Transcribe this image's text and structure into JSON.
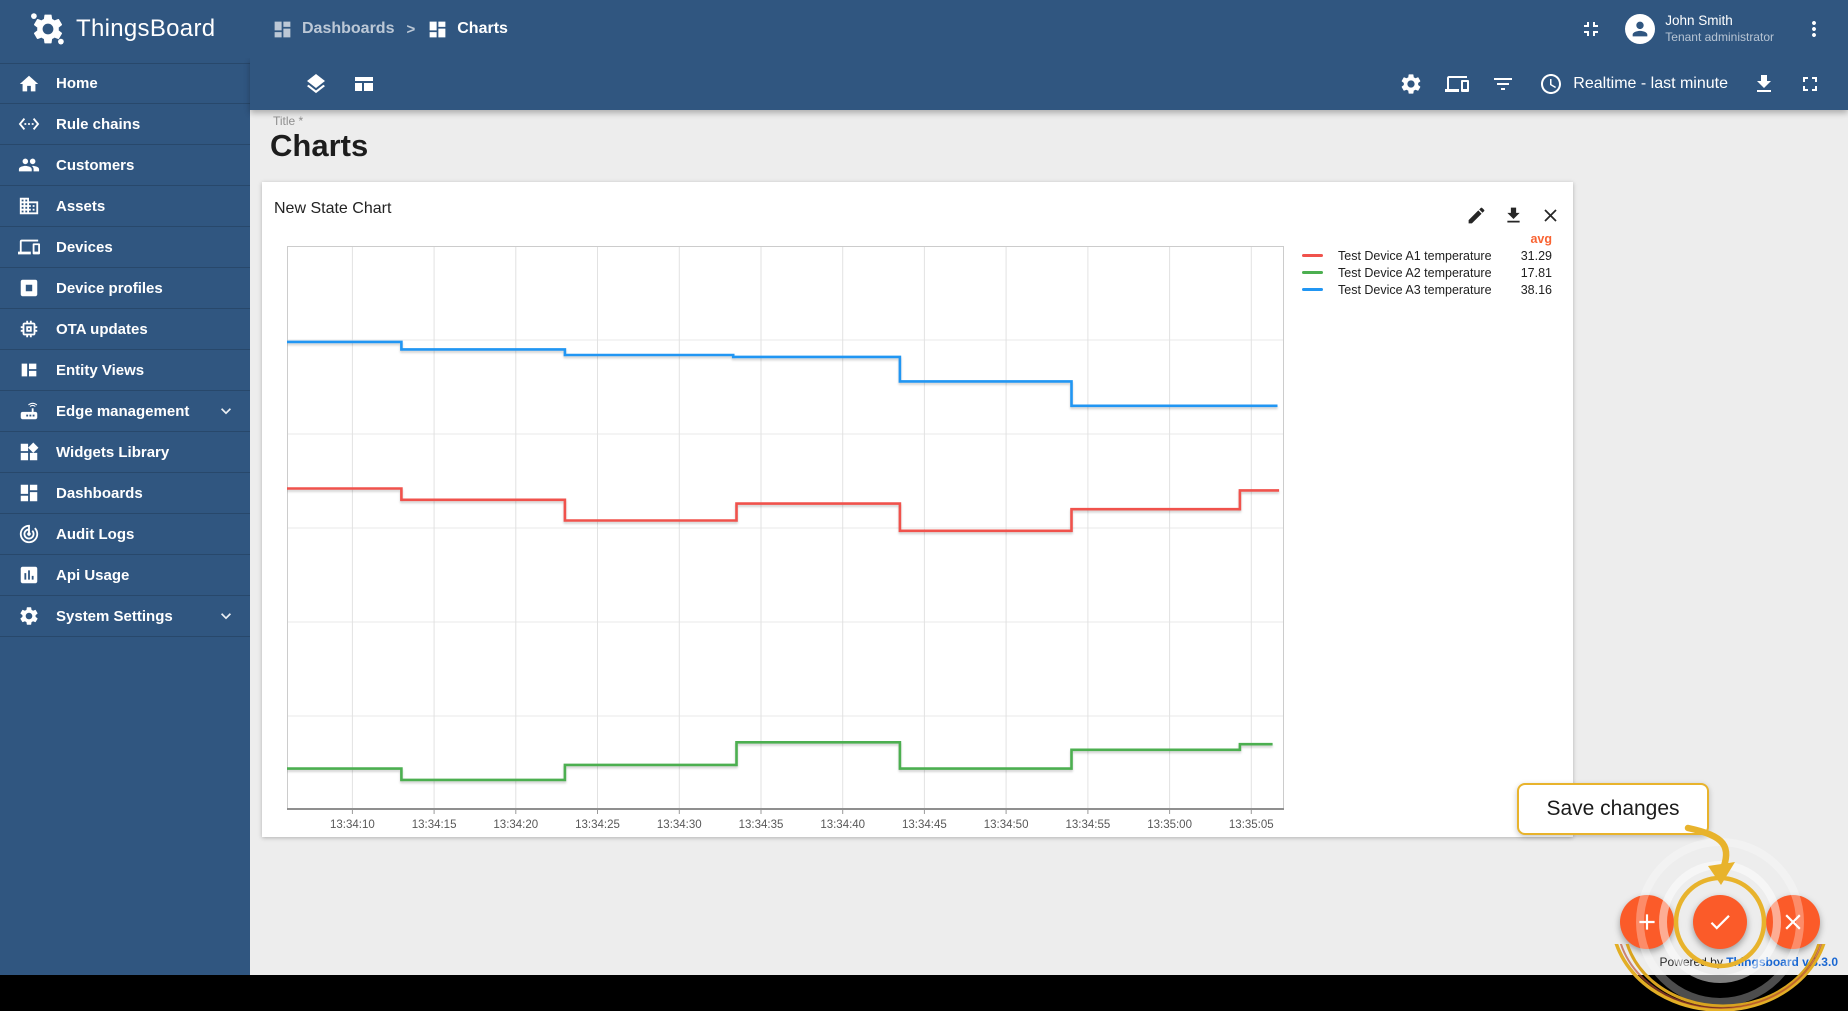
{
  "header": {
    "app_name": "ThingsBoard",
    "breadcrumb": [
      {
        "icon": "dashboards-icon",
        "label": "Dashboards"
      },
      {
        "icon": "dashboards-icon",
        "label": "Charts"
      }
    ],
    "separator": ">",
    "user": {
      "name": "John Smith",
      "role": "Tenant administrator"
    }
  },
  "sidebar": {
    "items": [
      {
        "label": "Home",
        "icon": "home-icon"
      },
      {
        "label": "Rule chains",
        "icon": "rule-chains-icon"
      },
      {
        "label": "Customers",
        "icon": "customers-icon"
      },
      {
        "label": "Assets",
        "icon": "assets-icon"
      },
      {
        "label": "Devices",
        "icon": "devices-icon"
      },
      {
        "label": "Device profiles",
        "icon": "device-profiles-icon"
      },
      {
        "label": "OTA updates",
        "icon": "ota-updates-icon"
      },
      {
        "label": "Entity Views",
        "icon": "entity-views-icon"
      },
      {
        "label": "Edge management",
        "icon": "edge-management-icon",
        "expandable": true
      },
      {
        "label": "Widgets Library",
        "icon": "widgets-library-icon"
      },
      {
        "label": "Dashboards",
        "icon": "dashboards-icon"
      },
      {
        "label": "Audit Logs",
        "icon": "audit-logs-icon"
      },
      {
        "label": "Api Usage",
        "icon": "api-usage-icon"
      },
      {
        "label": "System Settings",
        "icon": "system-settings-icon",
        "expandable": true
      }
    ]
  },
  "toolbar": {
    "left_icons": [
      "layers-icon",
      "manage-layouts-icon"
    ],
    "right_icons": [
      "settings-icon",
      "entity-aliases-icon",
      "filter-icon"
    ],
    "timewindow": {
      "icon": "clock-icon",
      "label": "Realtime - last minute"
    },
    "trailing_icons": [
      "download-icon",
      "fullscreen-icon"
    ]
  },
  "page": {
    "title_label": "Title *",
    "title": "Charts"
  },
  "widget": {
    "title": "New State Chart",
    "actions": [
      "edit-icon",
      "download-icon",
      "close-icon"
    ],
    "legend_header": "avg"
  },
  "chart_data": {
    "type": "line",
    "subtype": "step-after",
    "title": "New State Chart",
    "xlim": [
      6,
      67
    ],
    "ylim": [
      15,
      45
    ],
    "grid": true,
    "legend_position": "right",
    "x_ticks": [
      {
        "s": 10,
        "label": "13:34:10"
      },
      {
        "s": 15,
        "label": "13:34:15"
      },
      {
        "s": 20,
        "label": "13:34:20"
      },
      {
        "s": 25,
        "label": "13:34:25"
      },
      {
        "s": 30,
        "label": "13:34:30"
      },
      {
        "s": 35,
        "label": "13:34:35"
      },
      {
        "s": 40,
        "label": "13:34:40"
      },
      {
        "s": 45,
        "label": "13:34:45"
      },
      {
        "s": 50,
        "label": "13:34:50"
      },
      {
        "s": 55,
        "label": "13:34:55"
      },
      {
        "s": 60,
        "label": "13:35:00"
      },
      {
        "s": 65,
        "label": "13:35:05"
      }
    ],
    "series": [
      {
        "name": "Test Device A1 temperature",
        "color": "#f0524c",
        "avg": "31.29",
        "points": [
          [
            6,
            32.1
          ],
          [
            13,
            31.5
          ],
          [
            23,
            30.4
          ],
          [
            33.5,
            31.3
          ],
          [
            43.5,
            29.85
          ],
          [
            54,
            31.0
          ],
          [
            64.3,
            32.0
          ],
          [
            66.7,
            32.0
          ]
        ]
      },
      {
        "name": "Test Device A2 temperature",
        "color": "#4caf50",
        "avg": "17.81",
        "points": [
          [
            6,
            17.2
          ],
          [
            13,
            16.6
          ],
          [
            23,
            17.4
          ],
          [
            33.5,
            18.6
          ],
          [
            43.5,
            17.2
          ],
          [
            54,
            18.2
          ],
          [
            64.3,
            18.5
          ],
          [
            66.3,
            18.5
          ]
        ]
      },
      {
        "name": "Test Device A3 temperature",
        "color": "#2196f3",
        "avg": "38.16",
        "points": [
          [
            6,
            39.9
          ],
          [
            13,
            39.5
          ],
          [
            23,
            39.2
          ],
          [
            33.3,
            39.1
          ],
          [
            43.5,
            37.8
          ],
          [
            54,
            36.5
          ],
          [
            66.6,
            36.5
          ]
        ]
      }
    ]
  },
  "fab": {
    "tooltip": "Save changes",
    "buttons": [
      {
        "name": "add-widget-fab",
        "icon": "plus-icon"
      },
      {
        "name": "save-fab",
        "icon": "check-icon"
      },
      {
        "name": "cancel-fab",
        "icon": "close-icon"
      }
    ]
  },
  "footer": {
    "powered_by": "Powered by ",
    "version_link": "Thingsboard v.3.3.0"
  },
  "colors": {
    "primary": "#305680",
    "fab_orange": "#fb5b29",
    "avg_orange": "#f96332",
    "gold": "#e8b32c",
    "link_blue": "#1967d2",
    "series_red": "#f0524c",
    "series_green": "#4caf50",
    "series_blue": "#2196f3"
  }
}
